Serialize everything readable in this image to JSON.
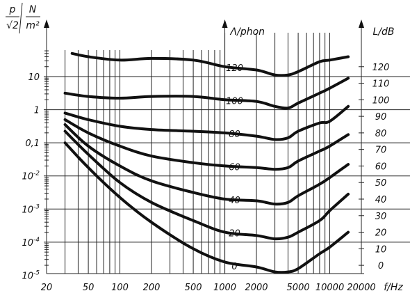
{
  "chart_data": {
    "type": "line",
    "title": "",
    "xaxis": {
      "label": "f/Hz",
      "scale": "log",
      "range": [
        20,
        20000
      ],
      "tick_labels": [
        "20",
        "50",
        "100",
        "200",
        "500",
        "1000",
        "2000",
        "5000",
        "10000",
        "20000"
      ],
      "tick_values": [
        20,
        50,
        100,
        200,
        500,
        1000,
        2000,
        5000,
        10000,
        20000
      ]
    },
    "left_axis": {
      "label_numerator": "p",
      "label_denominator": "√2",
      "unit_numerator": "N",
      "unit_denominator": "m²",
      "scale": "log",
      "tick_labels": [
        {
          "base": "10",
          "exp": "",
          "value": 10
        },
        {
          "base": "1",
          "exp": "",
          "value": 1
        },
        {
          "base": "0,1",
          "exp": "",
          "value": 0.1
        },
        {
          "base": "10",
          "exp": "-2",
          "value": 0.01
        },
        {
          "base": "10",
          "exp": "-3",
          "value": 0.001
        },
        {
          "base": "10",
          "exp": "-4",
          "value": 0.0001
        },
        {
          "base": "10",
          "exp": "-5",
          "value": 1e-05
        }
      ]
    },
    "right_axis": {
      "label": "L/dB",
      "range": [
        -10,
        130
      ],
      "ticks": [
        120,
        110,
        100,
        90,
        80,
        70,
        60,
        50,
        40,
        30,
        20,
        10,
        0
      ]
    },
    "phon_axis": {
      "label": "Λ/phon",
      "ticks": [
        120,
        100,
        80,
        60,
        40,
        20,
        0
      ]
    },
    "series": [
      {
        "phon": 120,
        "points": [
          [
            35,
            128
          ],
          [
            50,
            126
          ],
          [
            100,
            124
          ],
          [
            200,
            125
          ],
          [
            500,
            124
          ],
          [
            1000,
            120
          ],
          [
            2000,
            118
          ],
          [
            3000,
            115
          ],
          [
            4000,
            115
          ],
          [
            5000,
            117
          ],
          [
            8000,
            123
          ],
          [
            10000,
            124
          ],
          [
            15000,
            126
          ]
        ]
      },
      {
        "phon": 100,
        "points": [
          [
            30,
            104
          ],
          [
            50,
            102
          ],
          [
            100,
            101
          ],
          [
            200,
            102
          ],
          [
            500,
            102
          ],
          [
            1000,
            100
          ],
          [
            2000,
            99
          ],
          [
            3000,
            96
          ],
          [
            4000,
            95
          ],
          [
            5000,
            98
          ],
          [
            8000,
            104
          ],
          [
            10000,
            107
          ],
          [
            15000,
            113
          ]
        ]
      },
      {
        "phon": 80,
        "points": [
          [
            30,
            92
          ],
          [
            50,
            88
          ],
          [
            100,
            84
          ],
          [
            200,
            82
          ],
          [
            500,
            81
          ],
          [
            1000,
            80
          ],
          [
            2000,
            78
          ],
          [
            3000,
            76
          ],
          [
            4000,
            77
          ],
          [
            5000,
            81
          ],
          [
            8000,
            86
          ],
          [
            10000,
            87
          ],
          [
            15000,
            96
          ]
        ]
      },
      {
        "phon": 60,
        "points": [
          [
            30,
            88
          ],
          [
            50,
            80
          ],
          [
            100,
            72
          ],
          [
            200,
            66
          ],
          [
            500,
            62
          ],
          [
            1000,
            60
          ],
          [
            2000,
            59
          ],
          [
            3000,
            58
          ],
          [
            4000,
            59
          ],
          [
            5000,
            63
          ],
          [
            8000,
            69
          ],
          [
            10000,
            72
          ],
          [
            15000,
            79
          ]
        ]
      },
      {
        "phon": 40,
        "points": [
          [
            30,
            85
          ],
          [
            50,
            72
          ],
          [
            100,
            60
          ],
          [
            200,
            51
          ],
          [
            500,
            44
          ],
          [
            1000,
            40
          ],
          [
            2000,
            39
          ],
          [
            3000,
            37
          ],
          [
            4000,
            38
          ],
          [
            5000,
            42
          ],
          [
            8000,
            49
          ],
          [
            10000,
            53
          ],
          [
            15000,
            61
          ]
        ]
      },
      {
        "phon": 20,
        "points": [
          [
            30,
            81
          ],
          [
            50,
            67
          ],
          [
            100,
            50
          ],
          [
            200,
            38
          ],
          [
            500,
            27
          ],
          [
            1000,
            20
          ],
          [
            2000,
            18
          ],
          [
            3000,
            16
          ],
          [
            4000,
            17
          ],
          [
            5000,
            20
          ],
          [
            8000,
            27
          ],
          [
            10000,
            33
          ],
          [
            15000,
            43
          ]
        ]
      },
      {
        "phon": 0,
        "points": [
          [
            30,
            74
          ],
          [
            50,
            59
          ],
          [
            100,
            41
          ],
          [
            200,
            26
          ],
          [
            500,
            10
          ],
          [
            1000,
            2
          ],
          [
            2000,
            -1
          ],
          [
            3000,
            -4
          ],
          [
            4000,
            -4
          ],
          [
            5000,
            -2
          ],
          [
            8000,
            7
          ],
          [
            10000,
            11
          ],
          [
            15000,
            20
          ]
        ]
      }
    ]
  }
}
